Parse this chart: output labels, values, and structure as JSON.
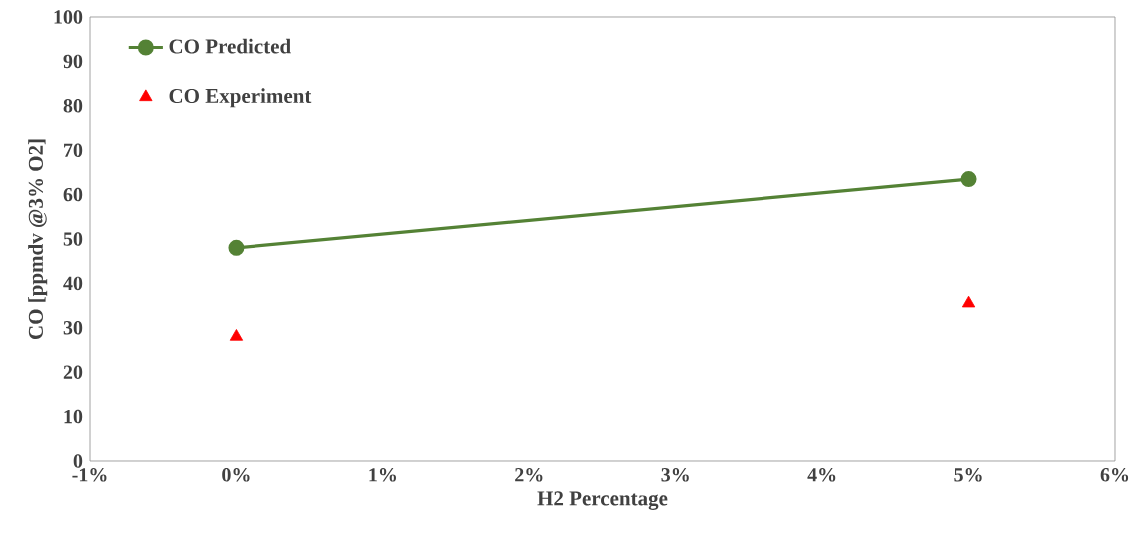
{
  "chart_data": {
    "type": "line",
    "xlabel": "H2 Percentage",
    "ylabel": "CO [ppmdv @3% O2]",
    "xlim": [
      -1,
      6
    ],
    "xticks": [
      {
        "value": -1,
        "label": "-1%"
      },
      {
        "value": 0,
        "label": "0%"
      },
      {
        "value": 1,
        "label": "1%"
      },
      {
        "value": 2,
        "label": "2%"
      },
      {
        "value": 3,
        "label": "3%"
      },
      {
        "value": 4,
        "label": "4%"
      },
      {
        "value": 5,
        "label": "5%"
      },
      {
        "value": 6,
        "label": "6%"
      }
    ],
    "ylim": [
      0,
      100
    ],
    "yticks": [
      0,
      10,
      20,
      30,
      40,
      50,
      60,
      70,
      80,
      90,
      100
    ],
    "grid": false,
    "legend": "top left",
    "x": [
      0,
      5
    ],
    "series": [
      {
        "name": "CO Predicted",
        "marker": "circle",
        "color": "#548235",
        "values": [
          48,
          63.5
        ]
      },
      {
        "name": "CO Experiment",
        "type": "scatter",
        "marker": "triangle",
        "color": "#ff0000",
        "values": [
          28,
          35.5
        ]
      }
    ]
  }
}
